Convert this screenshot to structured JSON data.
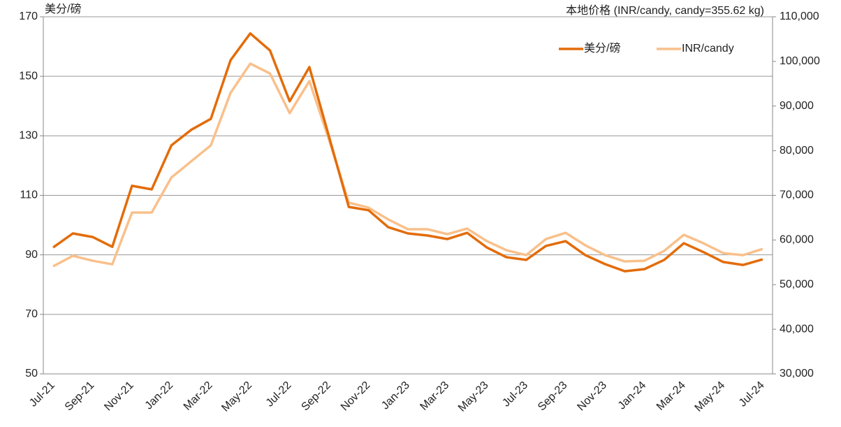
{
  "chart_data": {
    "type": "line",
    "y_label": "美分/磅",
    "y2_label": "本地价格 (INR/candy, candy=355.62 kg)",
    "categories": [
      "Jul-21",
      null,
      "Sep-21",
      null,
      "Nov-21",
      null,
      "Jan-22",
      null,
      "Mar-22",
      null,
      "May-22",
      null,
      "Jul-22",
      null,
      "Sep-22",
      null,
      "Nov-22",
      null,
      "Jan-23",
      null,
      "Mar-23",
      null,
      "May-23",
      null,
      "Jul-23",
      null,
      "Sep-23",
      null,
      "Nov-23",
      null,
      "Jan-24",
      null,
      "Mar-24",
      null,
      "May-24",
      null,
      "Jul-24"
    ],
    "series": [
      {
        "name": "美分/磅",
        "color": "#e36c0a",
        "values": [
          92.5,
          97.2,
          96,
          92.7,
          113.2,
          112,
          126.8,
          132,
          135.7,
          155.4,
          164.4,
          158.7,
          141.6,
          153.1,
          129.6,
          106.1,
          105,
          99.3,
          97.2,
          96.5,
          95.3,
          97.4,
          92.5,
          89.2,
          88.3,
          93,
          94.6,
          89.9,
          86.9,
          84.5,
          85.2,
          88.3,
          93.9,
          90.9,
          87.6,
          86.6,
          88.5
        ]
      },
      {
        "name": "INR/candy",
        "color": "#f9c08b",
        "axis": "y2",
        "values": [
          54100,
          56450,
          55350,
          54550,
          66150,
          66150,
          74000,
          77600,
          81200,
          92950,
          99500,
          97300,
          88400,
          95600,
          82400,
          68350,
          67250,
          64600,
          62400,
          62400,
          61300,
          62550,
          59750,
          57700,
          56600,
          60200,
          61600,
          58800,
          56600,
          55200,
          55350,
          57550,
          61150,
          59250,
          57050,
          56600,
          58000
        ]
      }
    ],
    "ylim": [
      50,
      170
    ],
    "yticks": [
      50,
      70,
      90,
      110,
      130,
      150,
      170
    ],
    "y2lim": [
      30000,
      110000
    ],
    "y2ticks": [
      {
        "value": 30000,
        "label": "30,000"
      },
      {
        "value": 40000,
        "label": "40,000"
      },
      {
        "value": 50000,
        "label": "50,000"
      },
      {
        "value": 60000,
        "label": "60,000"
      },
      {
        "value": 70000,
        "label": "70,000"
      },
      {
        "value": 80000,
        "label": "80,000"
      },
      {
        "value": 90000,
        "label": "90,000"
      },
      {
        "value": 100000,
        "label": "100,000"
      },
      {
        "value": 110000,
        "label": "110,000"
      }
    ],
    "grid": true,
    "legend": "upper right"
  }
}
